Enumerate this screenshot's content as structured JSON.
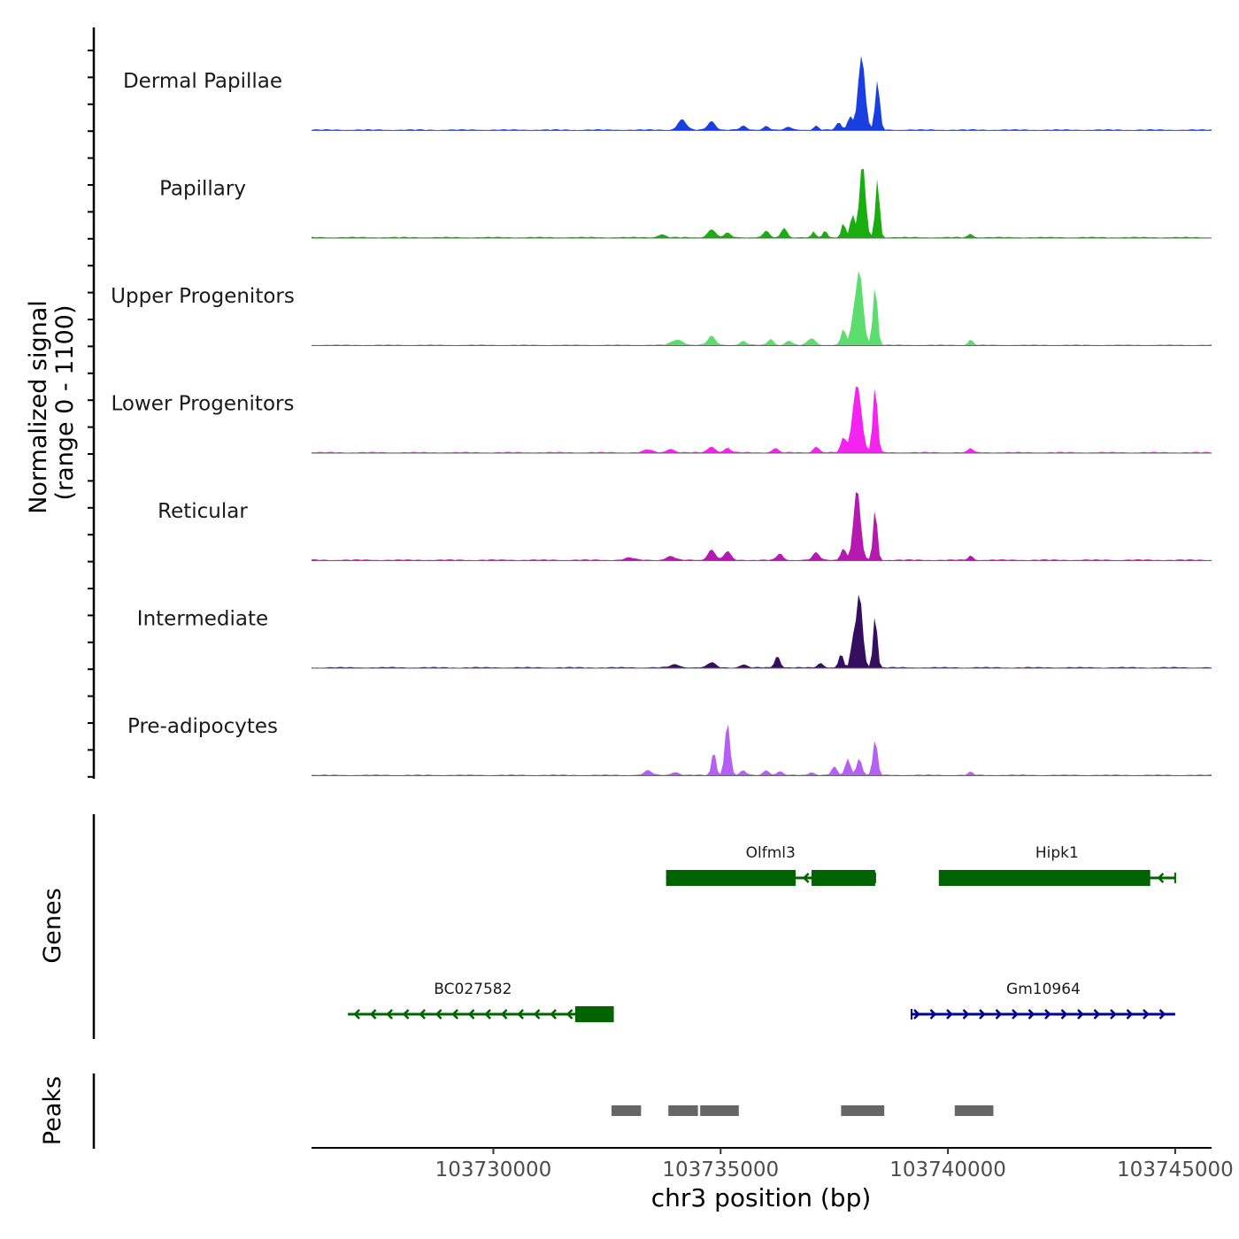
{
  "chart_data": {
    "type": "area",
    "title": "",
    "xlabel": "chr3 position (bp)",
    "ylabel_line1": "Normalized signal",
    "ylabel_line2": "(range 0 - 1100)",
    "ylim": [
      0,
      1100
    ],
    "xlim": [
      103726000,
      103745800
    ],
    "x_ticks": [
      103730000,
      103735000,
      103740000,
      103745000
    ],
    "x_tick_labels": [
      "103730000",
      "103735000",
      "103740000",
      "103745000"
    ],
    "coverage": {
      "baseline": 18,
      "tracks": [
        {
          "name": "Dermal Papillae",
          "color": "#1a3fe0",
          "peaks": [
            [
              103734150,
              140,
              90
            ],
            [
              103734800,
              120,
              80
            ],
            [
              103735500,
              50,
              70
            ],
            [
              103736000,
              55,
              60
            ],
            [
              103736500,
              40,
              60
            ],
            [
              103737100,
              55,
              50
            ],
            [
              103737600,
              95,
              60
            ],
            [
              103737850,
              180,
              55
            ],
            [
              103738100,
              1000,
              75
            ],
            [
              103738450,
              660,
              50
            ]
          ]
        },
        {
          "name": "Papillary",
          "color": "#1aad0f",
          "peaks": [
            [
              103733700,
              40,
              80
            ],
            [
              103734800,
              110,
              80
            ],
            [
              103735150,
              60,
              70
            ],
            [
              103736000,
              90,
              60
            ],
            [
              103736400,
              130,
              60
            ],
            [
              103737050,
              80,
              40
            ],
            [
              103737300,
              100,
              40
            ],
            [
              103737700,
              200,
              45
            ],
            [
              103737900,
              300,
              50
            ],
            [
              103738120,
              1000,
              65
            ],
            [
              103738450,
              800,
              45
            ],
            [
              103740500,
              50,
              50
            ]
          ]
        },
        {
          "name": "Upper Progenitors",
          "color": "#5ddd6e",
          "peaks": [
            [
              103734050,
              70,
              120
            ],
            [
              103734800,
              120,
              80
            ],
            [
              103735500,
              50,
              70
            ],
            [
              103736100,
              80,
              60
            ],
            [
              103736500,
              60,
              60
            ],
            [
              103737000,
              90,
              80
            ],
            [
              103737700,
              220,
              50
            ],
            [
              103737900,
              230,
              50
            ],
            [
              103738050,
              1000,
              80
            ],
            [
              103738400,
              800,
              50
            ],
            [
              103740500,
              70,
              50
            ]
          ]
        },
        {
          "name": "Lower Progenitors",
          "color": "#f423ef",
          "peaks": [
            [
              103733400,
              40,
              90
            ],
            [
              103733900,
              50,
              80
            ],
            [
              103734800,
              80,
              80
            ],
            [
              103735150,
              60,
              70
            ],
            [
              103736200,
              60,
              60
            ],
            [
              103737100,
              80,
              60
            ],
            [
              103737700,
              200,
              55
            ],
            [
              103738000,
              920,
              95
            ],
            [
              103738400,
              900,
              50
            ],
            [
              103740500,
              60,
              50
            ]
          ]
        },
        {
          "name": "Reticular",
          "color": "#b51ab0",
          "peaks": [
            [
              103733000,
              30,
              100
            ],
            [
              103733900,
              50,
              90
            ],
            [
              103734800,
              140,
              80
            ],
            [
              103735150,
              120,
              70
            ],
            [
              103736300,
              90,
              60
            ],
            [
              103737100,
              100,
              70
            ],
            [
              103737700,
              160,
              55
            ],
            [
              103738000,
              960,
              75
            ],
            [
              103738400,
              700,
              45
            ],
            [
              103740500,
              60,
              50
            ]
          ]
        },
        {
          "name": "Intermediate",
          "color": "#350e60",
          "peaks": [
            [
              103734000,
              40,
              100
            ],
            [
              103734800,
              70,
              80
            ],
            [
              103735500,
              40,
              70
            ],
            [
              103736250,
              160,
              55
            ],
            [
              103737200,
              60,
              60
            ],
            [
              103737650,
              180,
              50
            ],
            [
              103737900,
              300,
              45
            ],
            [
              103738050,
              1000,
              70
            ],
            [
              103738400,
              720,
              45
            ]
          ]
        },
        {
          "name": "Pre-adipocytes",
          "color": "#b460f4",
          "peaks": [
            [
              103733400,
              60,
              80
            ],
            [
              103734000,
              40,
              80
            ],
            [
              103734850,
              330,
              45
            ],
            [
              103735150,
              720,
              55
            ],
            [
              103735500,
              60,
              60
            ],
            [
              103736000,
              70,
              60
            ],
            [
              103736300,
              50,
              60
            ],
            [
              103737000,
              40,
              60
            ],
            [
              103737500,
              110,
              60
            ],
            [
              103737800,
              220,
              55
            ],
            [
              103738050,
              230,
              55
            ],
            [
              103738400,
              480,
              50
            ],
            [
              103740500,
              40,
              50
            ]
          ]
        }
      ]
    },
    "genes": {
      "title": "Genes",
      "items": [
        {
          "name": "Olfml3",
          "strand": "-",
          "color": "#006400",
          "start": 103733800,
          "end": 103738400,
          "exons": [
            [
              103733800,
              103736650
            ],
            [
              103737000,
              103738400
            ]
          ]
        },
        {
          "name": "Hipk1",
          "strand": "-",
          "color": "#006400",
          "start": 103739800,
          "end": 103745000,
          "exons": [
            [
              103739800,
              103744450
            ]
          ]
        },
        {
          "name": "BC027582",
          "strand": "-",
          "color": "#006400",
          "start": 103726800,
          "end": 103732300,
          "exons": [
            [
              103731800,
              103732650
            ]
          ]
        },
        {
          "name": "Gm10964",
          "strand": "+",
          "color": "#00008b",
          "start": 103739200,
          "end": 103745000,
          "exons": []
        }
      ]
    },
    "peaks": {
      "title": "Peaks",
      "regions": [
        [
          103732600,
          103733250
        ],
        [
          103733850,
          103734500
        ],
        [
          103734550,
          103735400
        ],
        [
          103737650,
          103738600
        ],
        [
          103740150,
          103741000
        ]
      ]
    }
  }
}
